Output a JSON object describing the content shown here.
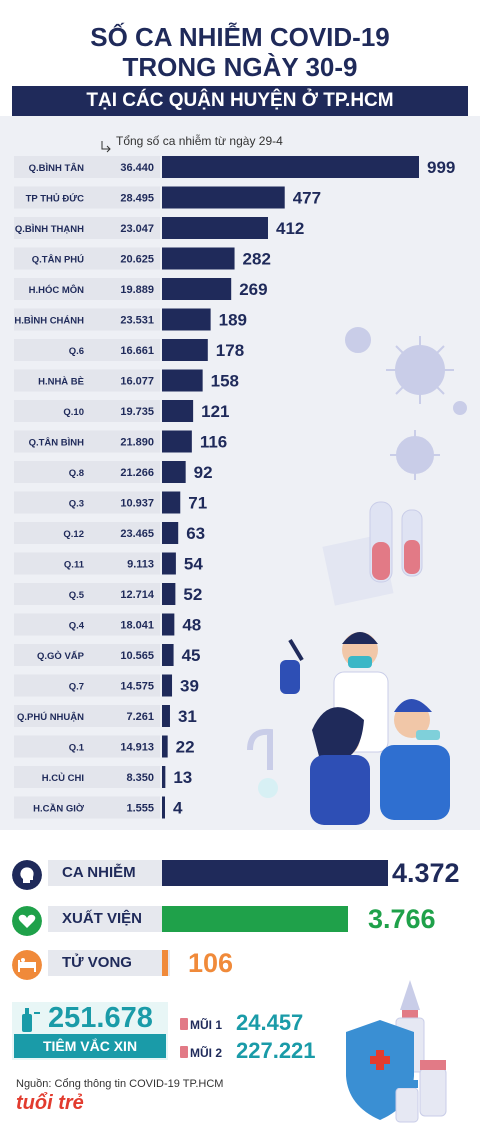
{
  "title_line1": "SỐ CA NHIỄM COVID-19",
  "title_line2": "TRONG NGÀY 30-9",
  "subtitle": "TẠI CÁC QUẬN HUYỆN Ở TP.HCM",
  "chart_note": "Tổng số ca nhiễm từ ngày 29-4",
  "colors": {
    "navy": "#1f2a5a",
    "green": "#1fa14a",
    "orange": "#f08a3a",
    "teal": "#1a9ba8",
    "panel": "#eef0f5"
  },
  "chart_data": {
    "type": "bar",
    "orientation": "horizontal",
    "categories": [
      "Q.BÌNH TÂN",
      "TP THỦ ĐỨC",
      "Q.BÌNH THẠNH",
      "Q.TÂN PHÚ",
      "H.HÓC MÔN",
      "H.BÌNH CHÁNH",
      "Q.6",
      "H.NHÀ BÈ",
      "Q.10",
      "Q.TÂN BÌNH",
      "Q.8",
      "Q.3",
      "Q.12",
      "Q.11",
      "Q.5",
      "Q.4",
      "Q.GÒ VẤP",
      "Q.7",
      "Q.PHÚ NHUẬN",
      "Q.1",
      "H.CỦ CHI",
      "H.CẦN GIỜ"
    ],
    "totals_since_29_4": [
      "36.440",
      "28.495",
      "23.047",
      "20.625",
      "19.889",
      "23.531",
      "16.661",
      "16.077",
      "19.735",
      "21.890",
      "21.266",
      "10.937",
      "23.465",
      "9.113",
      "12.714",
      "18.041",
      "10.565",
      "14.575",
      "7.261",
      "14.913",
      "8.350",
      "1.555"
    ],
    "values": [
      999,
      477,
      412,
      282,
      269,
      189,
      178,
      158,
      121,
      116,
      92,
      71,
      63,
      54,
      52,
      48,
      45,
      39,
      31,
      22,
      13,
      4
    ]
  },
  "summary": {
    "infected": {
      "label": "CA NHIỄM",
      "value": "4.372",
      "icon": "person-head-icon"
    },
    "recovered": {
      "label": "XUẤT VIỆN",
      "value": "3.766",
      "icon": "heart-icon"
    },
    "deaths": {
      "label": "TỬ VONG",
      "value": "106",
      "icon": "hospital-bed-icon"
    }
  },
  "vaccine": {
    "total": "251.678",
    "label": "TIÊM VẮC XIN",
    "dose1_label": "MŨI 1",
    "dose1_value": "24.457",
    "dose2_label": "MŨI 2",
    "dose2_value": "227.221"
  },
  "source": "Nguồn: Cổng thông tin COVID-19 TP.HCM",
  "logo": "tuổi trẻ"
}
